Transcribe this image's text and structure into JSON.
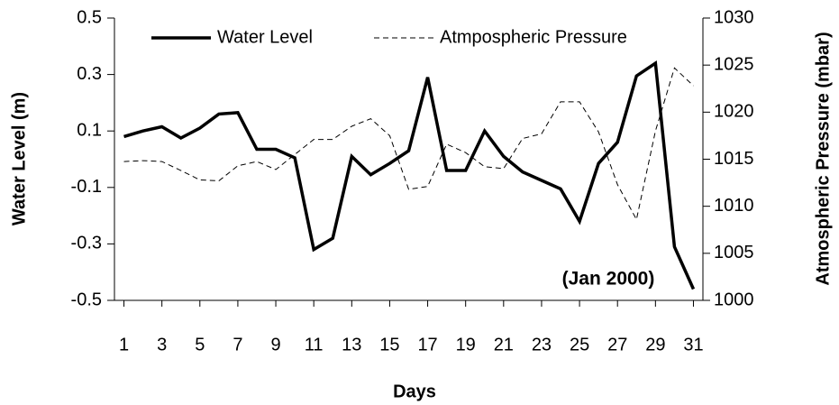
{
  "chart_data": {
    "type": "line",
    "xlabel": "Days",
    "ylabel": "Water Level (m)",
    "y2label": "Atmospheric Pressure (mbar)",
    "annotation": "(Jan 2000)",
    "x": [
      1,
      2,
      3,
      4,
      5,
      6,
      7,
      8,
      9,
      10,
      11,
      12,
      13,
      14,
      15,
      16,
      17,
      18,
      19,
      20,
      21,
      22,
      23,
      24,
      25,
      26,
      27,
      28,
      29,
      30,
      31
    ],
    "xlim": [
      0.5,
      31.5
    ],
    "xticks": [
      1,
      3,
      5,
      7,
      9,
      11,
      13,
      15,
      17,
      19,
      21,
      23,
      25,
      27,
      29,
      31
    ],
    "ylim": [
      -0.5,
      0.5
    ],
    "yticks": [
      -0.5,
      -0.3,
      -0.1,
      0.1,
      0.3,
      0.5
    ],
    "y2lim": [
      1000,
      1030
    ],
    "y2ticks": [
      1000,
      1005,
      1010,
      1015,
      1020,
      1025,
      1030
    ],
    "legend": "upper center",
    "series": [
      {
        "name": "Water Level",
        "color": "#000000",
        "line_style": "solid",
        "values": [
          0.08,
          0.1,
          0.115,
          0.075,
          0.11,
          0.16,
          0.165,
          0.035,
          0.035,
          0.005,
          -0.32,
          -0.28,
          0.01,
          -0.055,
          -0.015,
          0.03,
          0.29,
          -0.04,
          -0.04,
          0.1,
          0.01,
          -0.045,
          -0.075,
          -0.105,
          -0.22,
          -0.015,
          0.06,
          0.295,
          0.34,
          -0.31,
          -0.46
        ]
      },
      {
        "name": "Atmpospheric Pressure",
        "color": "#000000",
        "line_style": "dashed",
        "axis": "y2",
        "values": [
          1014.75,
          1014.85,
          1014.75,
          1013.8,
          1012.8,
          1012.7,
          1014.3,
          1014.75,
          1013.9,
          1015.5,
          1017.1,
          1017.1,
          1018.5,
          1019.3,
          1017.5,
          1011.8,
          1012.1,
          1016.6,
          1015.7,
          1014.2,
          1014.0,
          1017.2,
          1017.7,
          1021.1,
          1021.1,
          1017.9,
          1012.3,
          1008.6,
          1018.0,
          1024.7,
          1022.8
        ]
      }
    ]
  }
}
